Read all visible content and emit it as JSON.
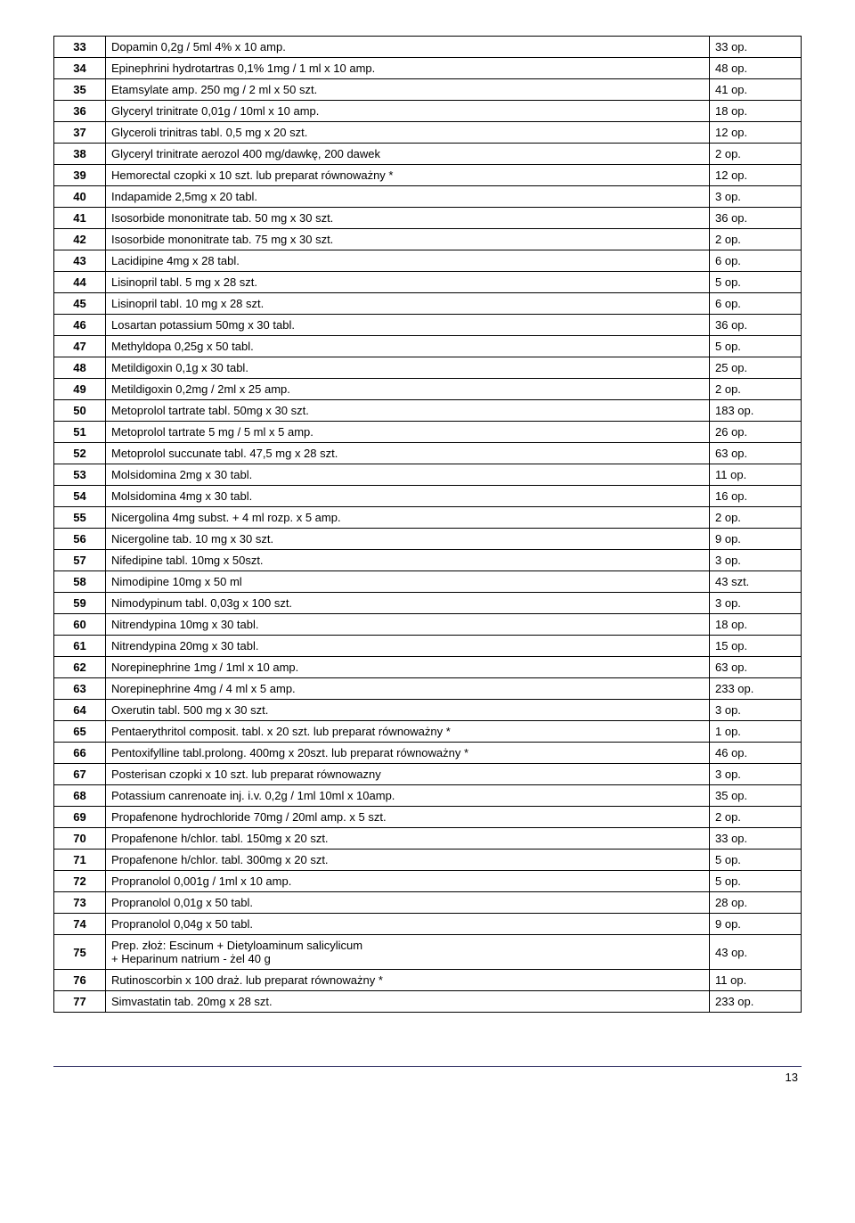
{
  "table": {
    "rows": [
      {
        "n": "33",
        "d": "Dopamin 0,2g / 5ml 4% x 10 amp.",
        "q": "33 op."
      },
      {
        "n": "34",
        "d": "Epinephrini hydrotartras 0,1% 1mg / 1 ml x 10 amp.",
        "q": "48 op."
      },
      {
        "n": "35",
        "d": "Etamsylate amp. 250 mg / 2 ml x 50 szt.",
        "q": "41 op."
      },
      {
        "n": "36",
        "d": "Glyceryl trinitrate 0,01g / 10ml x 10 amp.",
        "q": "18 op."
      },
      {
        "n": "37",
        "d": "Glyceroli trinitras tabl. 0,5 mg x 20 szt.",
        "q": "12 op."
      },
      {
        "n": "38",
        "d": "Glyceryl trinitrate aerozol 400 mg/dawkę, 200 dawek",
        "q": "2 op."
      },
      {
        "n": "39",
        "d": "Hemorectal czopki x 10 szt. lub preparat równoważny *",
        "q": "12 op."
      },
      {
        "n": "40",
        "d": "Indapamide 2,5mg x 20 tabl.",
        "q": "3 op."
      },
      {
        "n": "41",
        "d": "Isosorbide mononitrate tab. 50 mg  x 30 szt.",
        "q": "36 op."
      },
      {
        "n": "42",
        "d": "Isosorbide mononitrate tab. 75 mg  x 30 szt.",
        "q": "2 op."
      },
      {
        "n": "43",
        "d": "Lacidipine 4mg x 28 tabl.",
        "q": "6 op."
      },
      {
        "n": "44",
        "d": "Lisinopril tabl. 5 mg x 28 szt.",
        "q": "5 op."
      },
      {
        "n": "45",
        "d": "Lisinopril tabl. 10 mg x 28 szt.",
        "q": "6 op."
      },
      {
        "n": "46",
        "d": "Losartan potassium 50mg x 30 tabl.",
        "q": "36 op."
      },
      {
        "n": "47",
        "d": "Methyldopa 0,25g x 50 tabl.",
        "q": "5 op."
      },
      {
        "n": "48",
        "d": "Metildigoxin 0,1g x 30 tabl.",
        "q": "25 op."
      },
      {
        "n": "49",
        "d": "Metildigoxin 0,2mg / 2ml x 25 amp.",
        "q": "2 op."
      },
      {
        "n": "50",
        "d": "Metoprolol tartrate tabl. 50mg x 30 szt.",
        "q": "183 op."
      },
      {
        "n": "51",
        "d": "Metoprolol tartrate 5 mg / 5 ml x 5 amp.",
        "q": "26 op."
      },
      {
        "n": "52",
        "d": "Metoprolol succunate tabl. 47,5 mg x 28 szt.",
        "q": "63 op."
      },
      {
        "n": "53",
        "d": "Molsidomina 2mg x 30 tabl.",
        "q": "11 op."
      },
      {
        "n": "54",
        "d": "Molsidomina 4mg x 30 tabl.",
        "q": "16 op."
      },
      {
        "n": "55",
        "d": "Nicergolina 4mg subst. + 4 ml rozp. x 5 amp.",
        "q": "2 op."
      },
      {
        "n": "56",
        "d": "Nicergoline tab. 10 mg  x 30 szt.",
        "q": "9 op."
      },
      {
        "n": "57",
        "d": "Nifedipine tabl. 10mg x 50szt.",
        "q": "3 op."
      },
      {
        "n": "58",
        "d": "Nimodipine 10mg x 50 ml",
        "q": "43 szt."
      },
      {
        "n": "59",
        "d": "Nimodypinum tabl. 0,03g x 100 szt.",
        "q": "3 op."
      },
      {
        "n": "60",
        "d": "Nitrendypina 10mg x 30 tabl.",
        "q": "18 op."
      },
      {
        "n": "61",
        "d": "Nitrendypina 20mg x 30 tabl.",
        "q": "15 op."
      },
      {
        "n": "62",
        "d": "Norepinephrine 1mg / 1ml x 10 amp.",
        "q": "63 op."
      },
      {
        "n": "63",
        "d": "Norepinephrine 4mg / 4 ml x 5 amp.",
        "q": "233 op."
      },
      {
        "n": "64",
        "d": "Oxerutin tabl. 500 mg x 30 szt.",
        "q": "3 op."
      },
      {
        "n": "65",
        "d": "Pentaerythritol composit. tabl. x 20 szt. lub preparat równoważny *",
        "q": "1 op."
      },
      {
        "n": "66",
        "d": "Pentoxifylline tabl.prolong. 400mg x 20szt. lub preparat równoważny *",
        "q": "46 op."
      },
      {
        "n": "67",
        "d": "Posterisan czopki x 10 szt. lub preparat równowazny",
        "q": "3 op."
      },
      {
        "n": "68",
        "d": "Potassium canrenoate inj. i.v. 0,2g / 1ml 10ml x 10amp.",
        "q": "35 op."
      },
      {
        "n": "69",
        "d": "Propafenone hydrochloride 70mg / 20ml amp. x 5 szt.",
        "q": "2 op."
      },
      {
        "n": "70",
        "d": "Propafenone h/chlor. tabl. 150mg x 20 szt.",
        "q": "33 op."
      },
      {
        "n": "71",
        "d": "Propafenone h/chlor. tabl.  300mg x 20 szt.",
        "q": "5 op."
      },
      {
        "n": "72",
        "d": "Propranolol 0,001g / 1ml x 10 amp.",
        "q": "5 op."
      },
      {
        "n": "73",
        "d": "Propranolol 0,01g x 50 tabl.",
        "q": "28 op."
      },
      {
        "n": "74",
        "d": "Propranolol 0,04g x 50 tabl.",
        "q": "9 op."
      },
      {
        "n": "75",
        "d": "Prep. złoż: Escinum + Dietyloaminum salicylicum\n+ Heparinum natrium - żel 40 g",
        "q": "43 op."
      },
      {
        "n": "76",
        "d": "Rutinoscorbin x 100 draż. lub preparat równoważny *",
        "q": "11 op."
      },
      {
        "n": "77",
        "d": "Simvastatin tab. 20mg x 28 szt.",
        "q": "233 op."
      }
    ]
  },
  "page_number": "13"
}
